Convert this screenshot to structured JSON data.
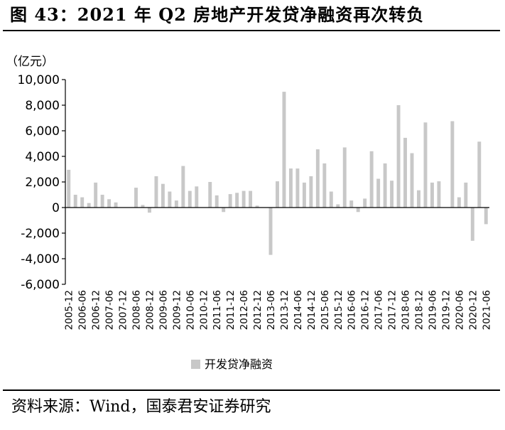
{
  "figure": {
    "title": "图 43：2021 年 Q2 房地产开发贷净融资再次转负",
    "source": "资料来源：Wind，国泰君安证券研究"
  },
  "chart_data": {
    "type": "bar",
    "title": "",
    "unit_label": "（亿元）",
    "ylim": [
      -6000,
      10000
    ],
    "yticks": [
      10000,
      8000,
      6000,
      4000,
      2000,
      0,
      -2000,
      -4000,
      -6000
    ],
    "ytick_labels": [
      "10,000",
      "8,000",
      "6,000",
      "4,000",
      "2,000",
      "0",
      "-2,000",
      "-4,000",
      "-6,000"
    ],
    "tick_labels": [
      "2005-12",
      "2006-06",
      "2006-12",
      "2007-06",
      "2007-12",
      "2008-06",
      "2008-12",
      "2009-06",
      "2009-12",
      "2010-06",
      "2010-12",
      "2011-06",
      "2011-12",
      "2012-06",
      "2012-12",
      "2013-06",
      "2013-12",
      "2014-06",
      "2014-12",
      "2015-06",
      "2015-12",
      "2016-06",
      "2016-12",
      "2017-06",
      "2017-12",
      "2018-06",
      "2018-12",
      "2019-06",
      "2019-12",
      "2020-06",
      "2020-12",
      "2021-06"
    ],
    "categories": [
      "2005-12",
      "2006-03",
      "2006-06",
      "2006-09",
      "2006-12",
      "2007-03",
      "2007-06",
      "2007-09",
      "2007-12",
      "2008-03",
      "2008-06",
      "2008-09",
      "2008-12",
      "2009-03",
      "2009-06",
      "2009-09",
      "2009-12",
      "2010-03",
      "2010-06",
      "2010-09",
      "2010-12",
      "2011-03",
      "2011-06",
      "2011-09",
      "2011-12",
      "2012-03",
      "2012-06",
      "2012-09",
      "2012-12",
      "2013-03",
      "2013-06",
      "2013-09",
      "2013-12",
      "2014-03",
      "2014-06",
      "2014-09",
      "2014-12",
      "2015-03",
      "2015-06",
      "2015-09",
      "2015-12",
      "2016-03",
      "2016-06",
      "2016-09",
      "2016-12",
      "2017-03",
      "2017-06",
      "2017-09",
      "2017-12",
      "2018-03",
      "2018-06",
      "2018-09",
      "2018-12",
      "2019-03",
      "2019-06",
      "2019-09",
      "2019-12",
      "2020-03",
      "2020-06",
      "2020-09",
      "2020-12",
      "2021-03",
      "2021-06"
    ],
    "series": [
      {
        "name": "开发贷净融资",
        "color": "#c8c8c8",
        "values": [
          2950,
          1000,
          800,
          350,
          1950,
          1000,
          650,
          400,
          0,
          0,
          1550,
          200,
          -400,
          2450,
          1850,
          1250,
          550,
          3250,
          1300,
          1650,
          0,
          2000,
          950,
          -350,
          1050,
          1150,
          1300,
          1300,
          150,
          0,
          -3700,
          2050,
          9050,
          3050,
          3050,
          1950,
          2450,
          4550,
          3450,
          1250,
          250,
          4700,
          550,
          -350,
          700,
          4400,
          2250,
          3450,
          2100,
          8000,
          5450,
          4250,
          1350,
          6650,
          1950,
          2050,
          0,
          6750,
          800,
          1950,
          -2600,
          5150,
          -1300
        ]
      }
    ],
    "grid": false,
    "legend": "bottom-center"
  }
}
